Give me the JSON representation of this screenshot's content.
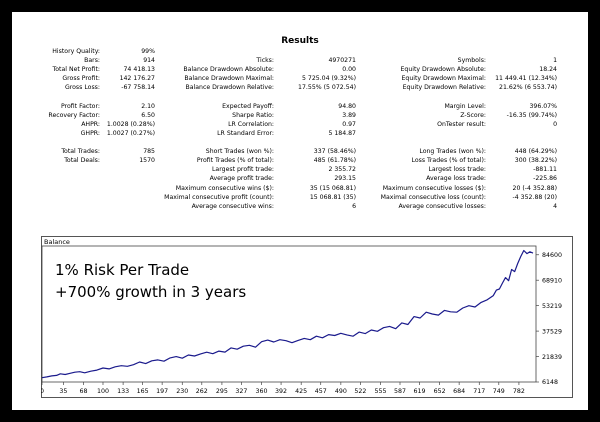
{
  "title": "Results",
  "rows": [
    {
      "label": "History Quality:",
      "value": "99%",
      "col": 0,
      "r": 0
    },
    {
      "label": "Bars:",
      "value": "914",
      "col": 0,
      "r": 1
    },
    {
      "label": "Ticks:",
      "value": "4970271",
      "col": 1,
      "r": 1
    },
    {
      "label": "Symbols:",
      "value": "1",
      "col": 2,
      "r": 1
    },
    {
      "label": "Total Net Profit:",
      "value": "74 418.13",
      "col": 0,
      "r": 2
    },
    {
      "label": "Balance Drawdown Absolute:",
      "value": "0.00",
      "col": 1,
      "r": 2
    },
    {
      "label": "Equity Drawdown Absolute:",
      "value": "18.24",
      "col": 2,
      "r": 2
    },
    {
      "label": "Gross Profit:",
      "value": "142 176.27",
      "col": 0,
      "r": 3
    },
    {
      "label": "Balance Drawdown Maximal:",
      "value": "5 725.04 (9.32%)",
      "col": 1,
      "r": 3
    },
    {
      "label": "Equity Drawdown Maximal:",
      "value": "11 449.41 (12.34%)",
      "col": 2,
      "r": 3
    },
    {
      "label": "Gross Loss:",
      "value": "-67 758.14",
      "col": 0,
      "r": 4
    },
    {
      "label": "Balance Drawdown Relative:",
      "value": "17.55% (5 072.54)",
      "col": 1,
      "r": 4
    },
    {
      "label": "Equity Drawdown Relative:",
      "value": "21.62% (6 553.74)",
      "col": 2,
      "r": 4
    },
    {
      "label": "Profit Factor:",
      "value": "2.10",
      "col": 0,
      "r": 6
    },
    {
      "label": "Expected Payoff:",
      "value": "94.80",
      "col": 1,
      "r": 6
    },
    {
      "label": "Margin Level:",
      "value": "396.07%",
      "col": 2,
      "r": 6
    },
    {
      "label": "Recovery Factor:",
      "value": "6.50",
      "col": 0,
      "r": 7
    },
    {
      "label": "Sharpe Ratio:",
      "value": "3.89",
      "col": 1,
      "r": 7
    },
    {
      "label": "Z-Score:",
      "value": "-16.35 (99.74%)",
      "col": 2,
      "r": 7
    },
    {
      "label": "AHPR:",
      "value": "1.0028 (0.28%)",
      "col": 0,
      "r": 8
    },
    {
      "label": "LR Correlation:",
      "value": "0.97",
      "col": 1,
      "r": 8
    },
    {
      "label": "OnTester result:",
      "value": "0",
      "col": 2,
      "r": 8
    },
    {
      "label": "GHPR:",
      "value": "1.0027 (0.27%)",
      "col": 0,
      "r": 9
    },
    {
      "label": "LR Standard Error:",
      "value": "5 184.87",
      "col": 1,
      "r": 9
    },
    {
      "label": "Total Trades:",
      "value": "785",
      "col": 0,
      "r": 11
    },
    {
      "label": "Short Trades (won %):",
      "value": "337 (58.46%)",
      "col": 1,
      "r": 11
    },
    {
      "label": "Long Trades (won %):",
      "value": "448 (64.29%)",
      "col": 2,
      "r": 11
    },
    {
      "label": "Total Deals:",
      "value": "1570",
      "col": 0,
      "r": 12
    },
    {
      "label": "Profit Trades (% of total):",
      "value": "485 (61.78%)",
      "col": 1,
      "r": 12
    },
    {
      "label": "Loss Trades (% of total):",
      "value": "300 (38.22%)",
      "col": 2,
      "r": 12
    },
    {
      "label": "Largest profit trade:",
      "value": "2 355.72",
      "col": 1,
      "r": 13
    },
    {
      "label": "Largest loss trade:",
      "value": "-881.11",
      "col": 2,
      "r": 13
    },
    {
      "label": "Average profit trade:",
      "value": "293.15",
      "col": 1,
      "r": 14
    },
    {
      "label": "Average loss trade:",
      "value": "-225.86",
      "col": 2,
      "r": 14
    },
    {
      "label": "Maximum consecutive wins ($):",
      "value": "35 (15 068.81)",
      "col": 1,
      "r": 15
    },
    {
      "label": "Maximum consecutive losses ($):",
      "value": "20 (-4 352.88)",
      "col": 2,
      "r": 15
    },
    {
      "label": "Maximal consecutive profit (count):",
      "value": "15 068.81 (35)",
      "col": 1,
      "r": 16
    },
    {
      "label": "Maximal consecutive loss (count):",
      "value": "-4 352.88 (20)",
      "col": 2,
      "r": 16
    },
    {
      "label": "Average consecutive wins:",
      "value": "6",
      "col": 1,
      "r": 17
    },
    {
      "label": "Average consecutive losses:",
      "value": "4",
      "col": 2,
      "r": 17
    }
  ],
  "chart_data": {
    "type": "line",
    "title": "Balance",
    "annotations": [
      "1% Risk Per Trade",
      "+700% growth in 3 years"
    ],
    "x_ticks": [
      "0",
      "35",
      "68",
      "100",
      "133",
      "165",
      "197",
      "230",
      "262",
      "295",
      "327",
      "360",
      "392",
      "425",
      "457",
      "490",
      "522",
      "555",
      "587",
      "619",
      "652",
      "684",
      "717",
      "749",
      "782"
    ],
    "y_ticks": [
      "84600",
      "68910",
      "53219",
      "37529",
      "21839",
      "6148"
    ],
    "xlim": [
      0,
      810
    ],
    "ylim": [
      6148,
      90000
    ],
    "x": [
      0,
      8,
      16,
      24,
      30,
      38,
      46,
      54,
      62,
      70,
      80,
      90,
      100,
      110,
      120,
      130,
      140,
      150,
      160,
      170,
      180,
      190,
      200,
      210,
      220,
      230,
      240,
      250,
      260,
      270,
      280,
      290,
      300,
      310,
      320,
      330,
      340,
      350,
      360,
      370,
      380,
      390,
      400,
      410,
      420,
      430,
      440,
      450,
      460,
      470,
      480,
      490,
      500,
      510,
      520,
      530,
      540,
      550,
      560,
      570,
      580,
      590,
      600,
      610,
      620,
      630,
      640,
      650,
      660,
      670,
      680,
      690,
      700,
      710,
      720,
      730,
      740,
      745,
      750,
      755,
      760,
      765,
      770,
      775,
      780,
      785,
      790,
      795,
      800,
      805
    ],
    "y": [
      8800,
      9300,
      9900,
      10200,
      11200,
      10800,
      11500,
      12200,
      12500,
      11800,
      12800,
      13500,
      14800,
      14200,
      15500,
      16200,
      15800,
      16800,
      18500,
      17500,
      19200,
      19800,
      19000,
      21000,
      21800,
      20800,
      22800,
      22200,
      23500,
      24500,
      23600,
      25200,
      24600,
      27200,
      26400,
      28200,
      28800,
      27600,
      31000,
      32000,
      30800,
      32200,
      31600,
      30400,
      31800,
      33000,
      32200,
      34400,
      33400,
      35400,
      34800,
      36200,
      35200,
      34400,
      36900,
      36000,
      38200,
      37400,
      39600,
      40400,
      39000,
      42600,
      41600,
      46500,
      45600,
      49200,
      48100,
      47400,
      50300,
      49400,
      49200,
      51800,
      53200,
      52400,
      55200,
      56800,
      59400,
      62800,
      63500,
      67200,
      70500,
      68600,
      75500,
      74200,
      79200,
      83600,
      87200,
      85300,
      86400,
      85600
    ]
  }
}
